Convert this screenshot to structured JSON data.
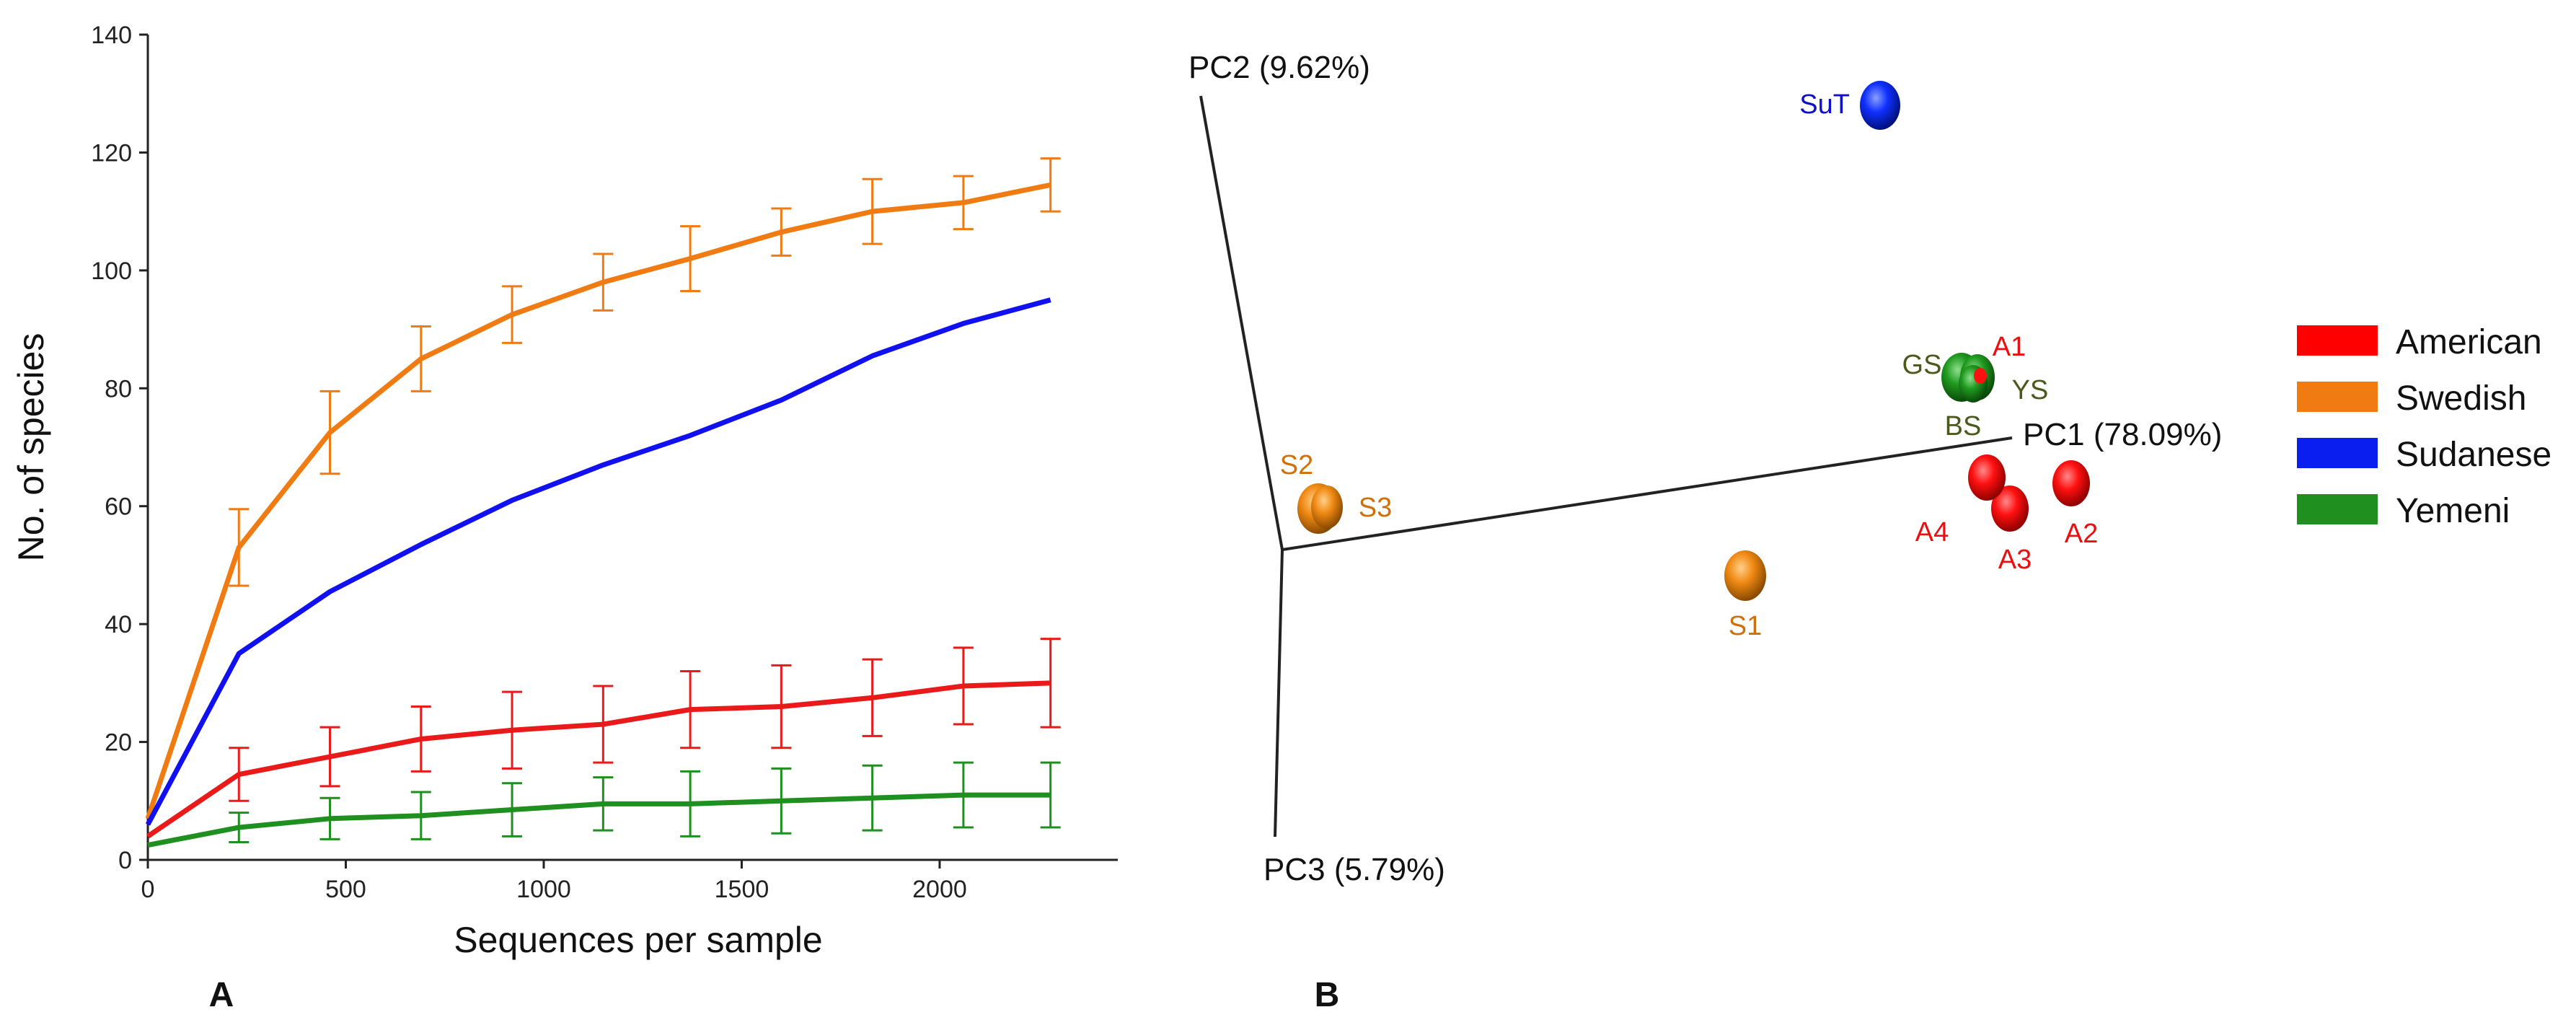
{
  "panels": {
    "a_label": "A",
    "b_label": "B"
  },
  "chart_data": [
    {
      "type": "line",
      "panel": "A",
      "title": "",
      "xlabel": "Sequences per sample",
      "ylabel": "No. of species",
      "xlim": [
        0,
        2450
      ],
      "ylim": [
        0,
        140
      ],
      "xticks": [
        0,
        500,
        1000,
        1500,
        2000
      ],
      "yticks": [
        0,
        20,
        40,
        60,
        80,
        100,
        120,
        140
      ],
      "x": [
        0,
        230,
        460,
        690,
        920,
        1150,
        1370,
        1600,
        1830,
        2060,
        2280
      ],
      "series": [
        {
          "name": "Swedish",
          "color": "#f07b12",
          "values": [
            7,
            53,
            72.5,
            85,
            92.5,
            98,
            102,
            106.5,
            110,
            111.5,
            114.5
          ],
          "err": [
            0,
            6.5,
            7,
            5.5,
            4.8,
            4.8,
            5.5,
            4,
            5.5,
            4.5,
            4.5
          ]
        },
        {
          "name": "Sudanese",
          "color": "#1010f0",
          "values": [
            6,
            35,
            45.5,
            53.5,
            61,
            67,
            72,
            78,
            85.5,
            91,
            95
          ],
          "err": null
        },
        {
          "name": "American",
          "color": "#ea1a1a",
          "values": [
            4,
            14.5,
            17.5,
            20.5,
            22,
            23,
            25.5,
            26,
            27.5,
            29.5,
            30
          ],
          "err": [
            0,
            4.5,
            5,
            5.5,
            6.5,
            6.5,
            6.5,
            7,
            6.5,
            6.5,
            7.5
          ]
        },
        {
          "name": "Yemeni",
          "color": "#1f8f1f",
          "values": [
            2.5,
            5.5,
            7,
            7.5,
            8.5,
            9.5,
            9.5,
            10,
            10.5,
            11,
            11
          ],
          "err": [
            0,
            2.5,
            3.5,
            4,
            4.5,
            4.5,
            5.5,
            5.5,
            5.5,
            5.5,
            5.5
          ]
        }
      ]
    },
    {
      "type": "scatter",
      "panel": "B",
      "title": "",
      "axes": [
        {
          "name": "PC1",
          "label": "PC1 (78.09%)"
        },
        {
          "name": "PC2",
          "label": "PC2 (9.62%)"
        },
        {
          "name": "PC3",
          "label": "PC3 (5.79%)"
        }
      ],
      "points": [
        {
          "id": "SuT",
          "group": "Sudanese",
          "label": "SuT"
        },
        {
          "id": "GS",
          "group": "Yemeni",
          "label": "GS"
        },
        {
          "id": "YS",
          "group": "Yemeni",
          "label": "YS"
        },
        {
          "id": "BS",
          "group": "Yemeni",
          "label": "BS"
        },
        {
          "id": "A1",
          "group": "American",
          "label": "A1"
        },
        {
          "id": "A2",
          "group": "American",
          "label": "A2"
        },
        {
          "id": "A3",
          "group": "American",
          "label": "A3"
        },
        {
          "id": "A4",
          "group": "American",
          "label": "A4"
        },
        {
          "id": "S1",
          "group": "Swedish",
          "label": "S1"
        },
        {
          "id": "S2",
          "group": "Swedish",
          "label": "S2"
        },
        {
          "id": "S3",
          "group": "Swedish",
          "label": "S3"
        }
      ],
      "legend": [
        {
          "name": "American",
          "color": "#ff0000"
        },
        {
          "name": "Swedish",
          "color": "#f07b12"
        },
        {
          "name": "Sudanese",
          "color": "#0b1ef0"
        },
        {
          "name": "Yemeni",
          "color": "#1f8f1f"
        }
      ],
      "legend_position": "right"
    }
  ]
}
